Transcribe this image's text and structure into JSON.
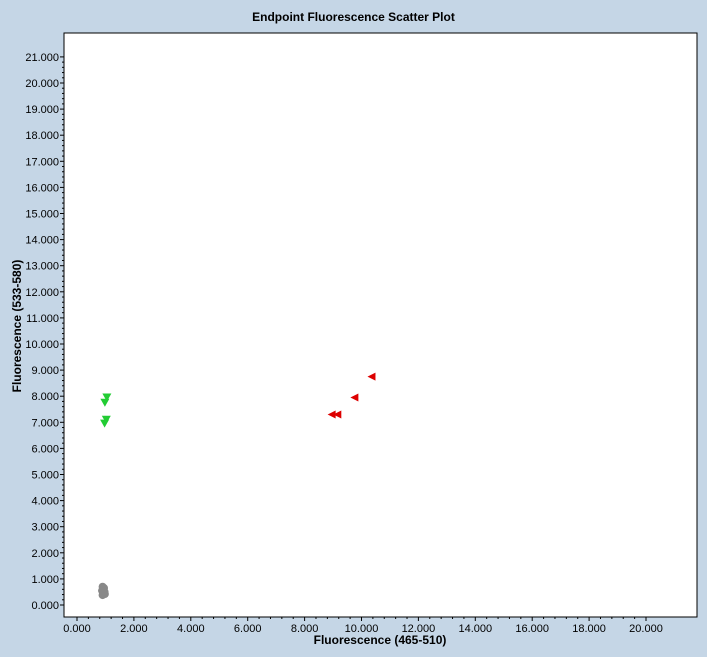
{
  "chart_data": {
    "type": "scatter",
    "title": "Endpoint Fluorescence Scatter Plot",
    "xlabel": "Fluorescence (465-510)",
    "ylabel": "Fluorescence (533-580)",
    "xlim": [
      0,
      22
    ],
    "ylim": [
      0,
      22
    ],
    "x_ticks": [
      "0.000",
      "2.000",
      "4.000",
      "6.000",
      "8.000",
      "10.000",
      "12.000",
      "14.000",
      "16.000",
      "18.000",
      "20.000"
    ],
    "y_ticks": [
      "0.000",
      "1.000",
      "2.000",
      "3.000",
      "4.000",
      "5.000",
      "6.000",
      "7.000",
      "8.000",
      "9.000",
      "10.000",
      "11.000",
      "12.000",
      "13.000",
      "14.000",
      "15.000",
      "16.000",
      "17.000",
      "18.000",
      "19.000",
      "20.000",
      "21.000"
    ],
    "grid": false,
    "series": [
      {
        "marker": "triangle-left",
        "color": "#dd0000",
        "points": [
          {
            "x": 10.35,
            "y": 8.75
          },
          {
            "x": 9.75,
            "y": 7.95
          },
          {
            "x": 9.15,
            "y": 7.3
          },
          {
            "x": 8.95,
            "y": 7.3
          }
        ]
      },
      {
        "marker": "triangle-down",
        "color": "#22cc33",
        "points": [
          {
            "x": 1.05,
            "y": 7.95
          },
          {
            "x": 0.98,
            "y": 7.75
          },
          {
            "x": 1.03,
            "y": 7.1
          },
          {
            "x": 0.97,
            "y": 6.95
          }
        ]
      },
      {
        "marker": "circle",
        "color": "#888888",
        "points": [
          {
            "x": 0.9,
            "y": 0.7
          },
          {
            "x": 0.95,
            "y": 0.65
          },
          {
            "x": 0.88,
            "y": 0.55
          },
          {
            "x": 0.97,
            "y": 0.5
          },
          {
            "x": 0.92,
            "y": 0.45
          },
          {
            "x": 0.98,
            "y": 0.42
          },
          {
            "x": 0.9,
            "y": 0.38
          }
        ]
      }
    ]
  }
}
